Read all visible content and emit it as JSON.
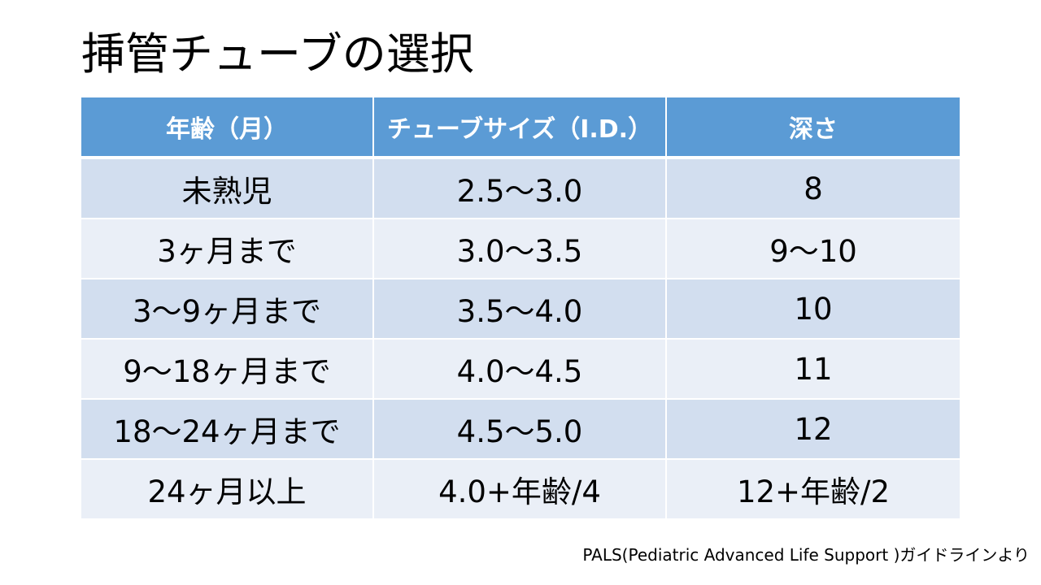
{
  "slide": {
    "title": "挿管チューブの選択",
    "source_note": "PALS(Pediatric Advanced Life Support )ガイドラインより"
  },
  "table": {
    "header_color": "#5b9bd5",
    "row_colors": [
      "#d2deef",
      "#eaeff7"
    ],
    "headers": [
      "年齢（月）",
      "チューブサイズ（I.D.）",
      "深さ"
    ],
    "rows": [
      [
        "未熟児",
        "2.5〜3.0",
        "8"
      ],
      [
        "3ヶ月まで",
        "3.0〜3.5",
        "9〜10"
      ],
      [
        "3〜9ヶ月まで",
        "3.5〜4.0",
        "10"
      ],
      [
        "9〜18ヶ月まで",
        "4.0〜4.5",
        "11"
      ],
      [
        "18〜24ヶ月まで",
        "4.5〜5.0",
        "12"
      ],
      [
        "24ヶ月以上",
        "4.0+年齢/4",
        "12+年齢/2"
      ]
    ]
  }
}
